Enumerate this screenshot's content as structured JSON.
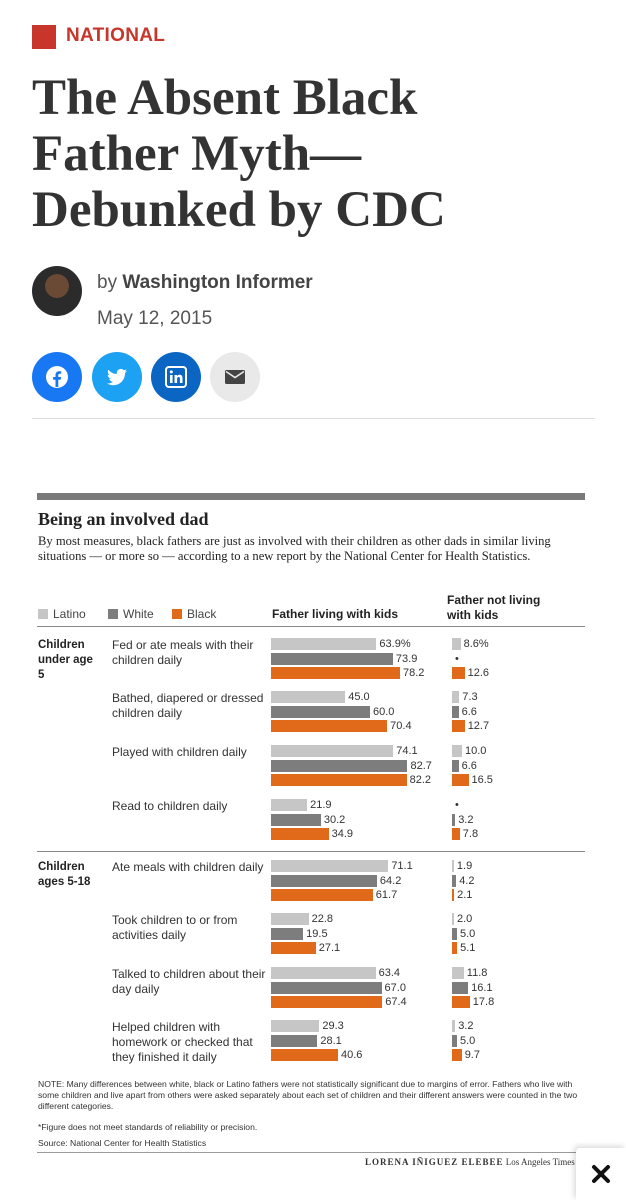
{
  "header": {
    "section": "NATIONAL",
    "title": "The Absent Black Father Myth—Debunked by CDC",
    "byline_prefix": "by",
    "author": "Washington Informer",
    "date": "May 12, 2015"
  },
  "chart_data": {
    "type": "bar",
    "orientation": "horizontal",
    "title": "Being an involved dad",
    "subtitle": "By most measures, black fathers are just as involved with their children as other dads in similar living situations — or more so — according to a new report by the National Center for Health Statistics.",
    "series": [
      {
        "name": "Latino",
        "color": "#c6c6c6"
      },
      {
        "name": "White",
        "color": "#7d7d7d"
      },
      {
        "name": "Black",
        "color": "#e0691a"
      }
    ],
    "groups": [
      {
        "label": "Children under age 5",
        "categories": [
          "Fed or ate meals with their children daily",
          "Bathed, diapered or dressed children daily",
          "Played with children daily",
          "Read to children daily"
        ]
      },
      {
        "label": "Children ages 5-18",
        "categories": [
          "Ate meals with children daily",
          "Took children to or from activities daily",
          "Talked to children about their day daily",
          "Helped children with homework or checked that they finished it daily"
        ]
      }
    ],
    "panels": [
      {
        "title": "Father living with kids",
        "series": [
          {
            "values": [
              [
                63.9,
                45.0,
                74.1,
                21.9
              ],
              [
                71.1,
                22.8,
                63.4,
                29.3
              ]
            ],
            "value_labels": [
              [
                "63.9%",
                "45.0",
                "74.1",
                "21.9"
              ],
              [
                "71.1",
                "22.8",
                "63.4",
                "29.3"
              ]
            ]
          },
          {
            "values": [
              [
                73.9,
                60.0,
                82.7,
                30.2
              ],
              [
                64.2,
                19.5,
                67.0,
                28.1
              ]
            ],
            "value_labels": [
              [
                "73.9",
                "60.0",
                "82.7",
                "30.2"
              ],
              [
                "64.2",
                "19.5",
                "67.0",
                "28.1"
              ]
            ]
          },
          {
            "values": [
              [
                78.2,
                70.4,
                82.2,
                34.9
              ],
              [
                61.7,
                27.1,
                67.4,
                40.6
              ]
            ],
            "value_labels": [
              [
                "78.2",
                "70.4",
                "82.2",
                "34.9"
              ],
              [
                "61.7",
                "27.1",
                "67.4",
                "40.6"
              ]
            ]
          }
        ]
      },
      {
        "title": "Father not living with kids",
        "series": [
          {
            "values": [
              [
                8.6,
                7.3,
                10.0,
                null
              ],
              [
                1.9,
                2.0,
                11.8,
                3.2
              ]
            ],
            "value_labels": [
              [
                "8.6%",
                "7.3",
                "10.0",
                "•"
              ],
              [
                "1.9",
                "2.0",
                "11.8",
                "3.2"
              ]
            ]
          },
          {
            "values": [
              [
                null,
                6.6,
                6.6,
                3.2
              ],
              [
                4.2,
                5.0,
                16.1,
                5.0
              ]
            ],
            "value_labels": [
              [
                "•",
                "6.6",
                "6.6",
                "3.2"
              ],
              [
                "4.2",
                "5.0",
                "16.1",
                "5.0"
              ]
            ]
          },
          {
            "values": [
              [
                12.6,
                12.7,
                16.5,
                7.8
              ],
              [
                2.1,
                5.1,
                17.8,
                9.7
              ]
            ],
            "value_labels": [
              [
                "12.6",
                "12.7",
                "16.5",
                "7.8"
              ],
              [
                "2.1",
                "5.1",
                "17.8",
                "9.7"
              ]
            ]
          }
        ]
      }
    ],
    "notes": [
      "NOTE: Many differences between white, black or Latino fathers were not statistically significant due to margins of error. Fathers who live with some children and live apart from others were asked separately about each set of children and their different answers were counted in the two different categories.",
      "*Figure does not meet standards of reliability or precision.",
      "Source: National Center for Health Statistics"
    ],
    "credit": "LORENA IÑIGUEZ ELEBEE",
    "credit_outlet": "Los Angeles Times"
  }
}
